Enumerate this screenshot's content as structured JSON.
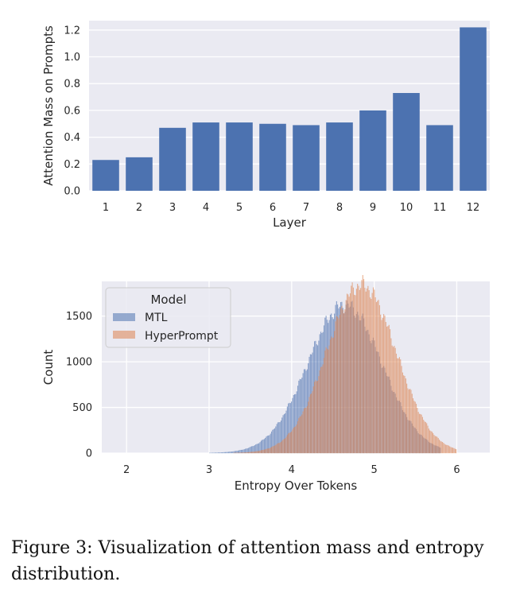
{
  "colors": {
    "background": "#eaeaf2",
    "grid": "#ffffff",
    "bar": "#4c72b0",
    "mtl": "#4c72b0",
    "hyperprompt": "#dd8452"
  },
  "chart_data": [
    {
      "type": "bar",
      "xlabel": "Layer",
      "ylabel": "Attention Mass on Prompts",
      "categories": [
        "1",
        "2",
        "3",
        "4",
        "5",
        "6",
        "7",
        "8",
        "9",
        "10",
        "11",
        "12"
      ],
      "values": [
        0.23,
        0.25,
        0.47,
        0.51,
        0.51,
        0.5,
        0.49,
        0.51,
        0.6,
        0.73,
        0.49,
        1.22
      ],
      "ylim": [
        0,
        1.27
      ],
      "yticks": [
        "0.0",
        "0.2",
        "0.4",
        "0.6",
        "0.8",
        "1.0",
        "1.2"
      ],
      "grid": true
    },
    {
      "type": "histogram",
      "xlabel": "Entropy Over Tokens",
      "ylabel": "Count",
      "xlim": [
        1.7,
        6.4
      ],
      "ylim": [
        0,
        1880
      ],
      "xticks": [
        "2",
        "3",
        "4",
        "5",
        "6"
      ],
      "yticks": [
        "0",
        "500",
        "1000",
        "1500"
      ],
      "grid": true,
      "legend": {
        "title": "Model",
        "position": "top-left"
      },
      "series": [
        {
          "name": "MTL",
          "distribution": "normal",
          "mean": 4.64,
          "sd": 0.45,
          "peak_count": 1620,
          "x_range": [
            2.75,
            5.8
          ]
        },
        {
          "name": "HyperPrompt",
          "distribution": "normal",
          "mean": 4.84,
          "sd": 0.42,
          "peak_count": 1840,
          "x_range": [
            2.75,
            6.0
          ]
        }
      ]
    }
  ],
  "caption": "Figure 3: Visualization of attention mass and entropy distribution."
}
